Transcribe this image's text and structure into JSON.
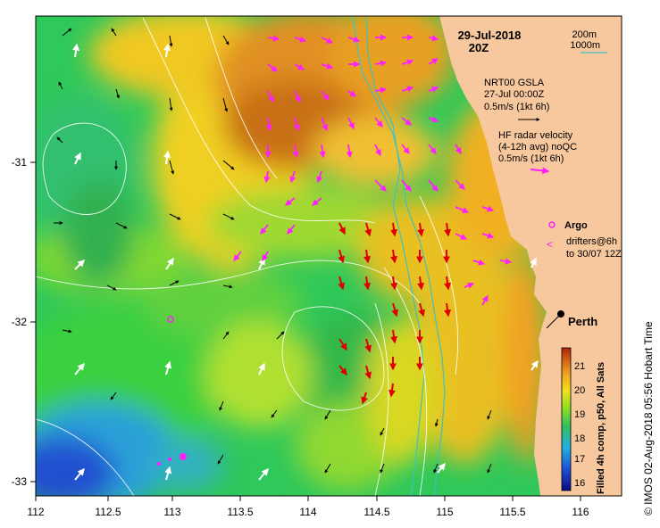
{
  "map": {
    "date": "29-Jul-2018",
    "time": "20Z",
    "isobath_legend": [
      "200m",
      "1000m"
    ],
    "isobath_color": "#40c0c0",
    "place": "Perth",
    "colorbar_title": "Filled 4h comp, p50, All Sats",
    "colorbar_ticks": [
      "21",
      "20",
      "19",
      "18",
      "17",
      "16"
    ],
    "x_ticks": [
      "112",
      "112.5",
      "113",
      "113.5",
      "114",
      "114.5",
      "115",
      "115.5",
      "116"
    ],
    "y_ticks": [
      "-31",
      "-32",
      "-33"
    ],
    "side_label": "© IMOS 02-Aug-2018 05:56 Hobart Time",
    "land_color": "#f7c79e",
    "legend": {
      "gsla_title": "NRT00 GSLA",
      "gsla_date": "27-Jul 00:00Z",
      "gsla_scale": "0.5m/s (1kt 6h)",
      "radar_title": "HF radar velocity",
      "radar_sub": "(4-12h avg) noQC",
      "radar_scale": "0.5m/s (1kt 6h)",
      "argo": "Argo",
      "drifters_line1": "drifters@6h",
      "drifters_line2": "to 30/07 12Z"
    }
  }
}
